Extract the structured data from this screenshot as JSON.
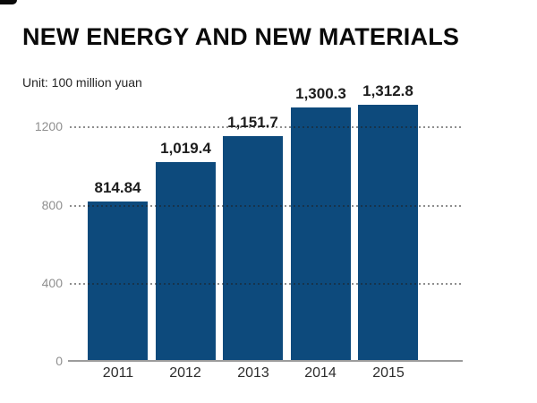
{
  "header": {
    "title": "NEW ENERGY AND NEW MATERIALS",
    "unit": "Unit: 100 million yuan"
  },
  "chart_data": {
    "type": "bar",
    "title": "NEW ENERGY AND NEW MATERIALS",
    "subtitle": "Unit: 100 million yuan",
    "categories": [
      "2011",
      "2012",
      "2013",
      "2014",
      "2015"
    ],
    "values": [
      814.84,
      1019.4,
      1151.7,
      1300.3,
      1312.8
    ],
    "value_labels": [
      "814.84",
      "1,019.4",
      "1,151.7",
      "1,300.3",
      "1,312.8"
    ],
    "xlabel": "",
    "ylabel": "",
    "yticks": [
      0,
      400,
      800,
      1200
    ],
    "ytick_labels": [
      "0",
      "400",
      "800",
      "1200"
    ],
    "ylim": [
      0,
      1345
    ],
    "grid": "horizontal dotted lines at 400, 800, 1200 drawn over bars",
    "legend": "none",
    "colors": {
      "bar": "#0d4a7c",
      "axis_line": "#9c9c9c",
      "ytick_text": "#8f8f8f",
      "xtick_text": "#2d2d2d",
      "value_text": "#1d1d1d",
      "title_text": "#0a0a0a",
      "background": "#ffffff"
    }
  }
}
